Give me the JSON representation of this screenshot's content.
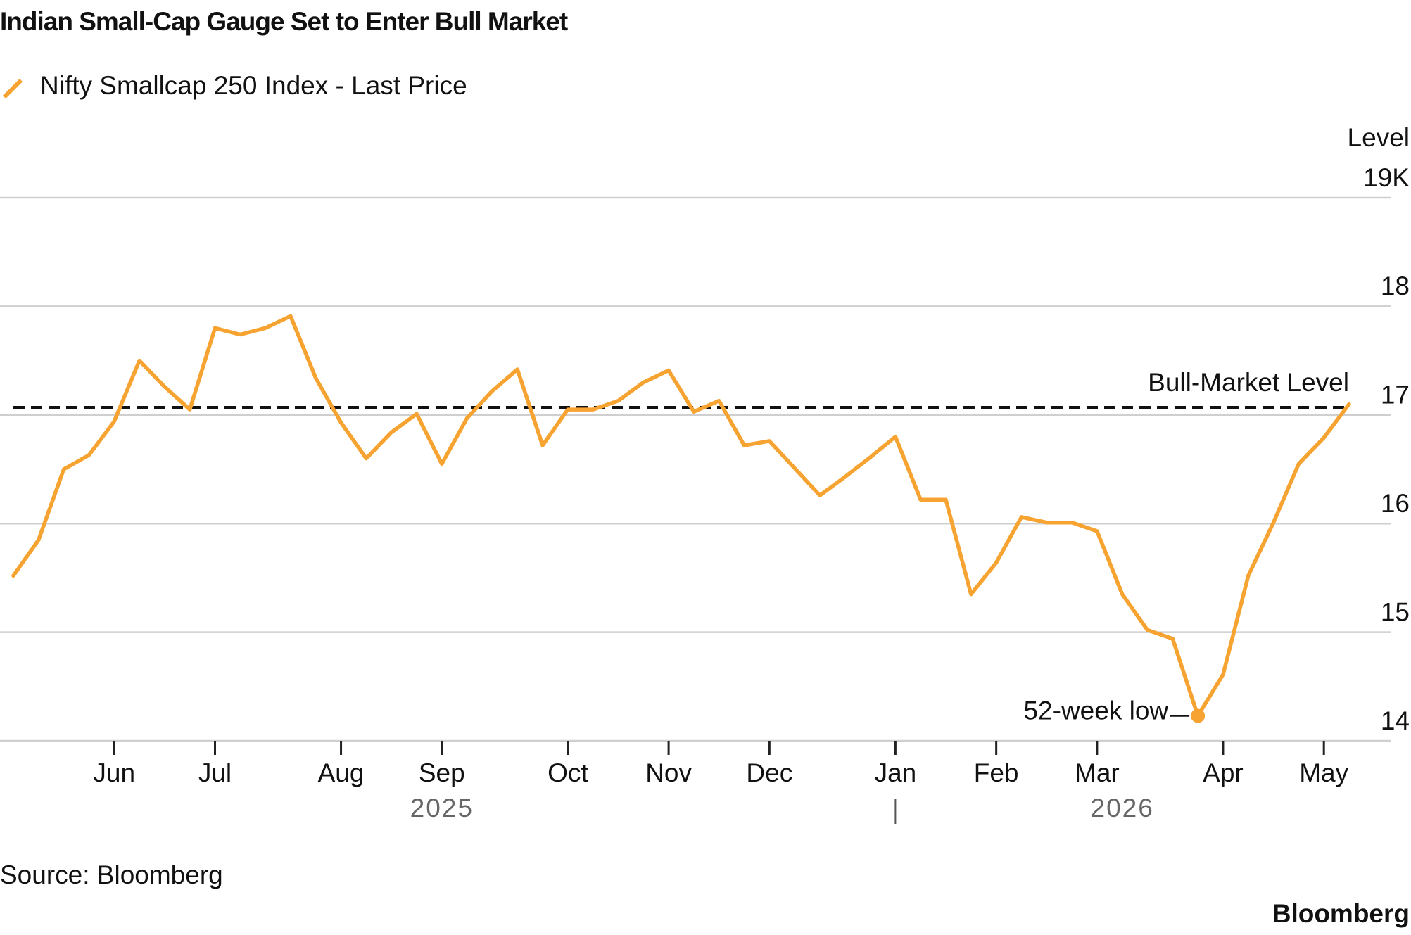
{
  "chart_data": {
    "type": "line",
    "title": "Indian Small-Cap Gauge Set to Enter Bull Market",
    "y_axis_label": "Level",
    "categories": [
      null,
      null,
      null,
      null,
      "Jun",
      null,
      null,
      null,
      "Jul",
      null,
      null,
      null,
      null,
      "Aug",
      null,
      null,
      null,
      "Sep",
      null,
      null,
      null,
      null,
      "Oct",
      null,
      null,
      null,
      "Nov",
      null,
      null,
      null,
      "Dec",
      null,
      null,
      null,
      null,
      "Jan",
      null,
      null,
      null,
      "Feb",
      null,
      null,
      null,
      "Mar",
      null,
      null,
      null,
      null,
      "Apr",
      null,
      null,
      null,
      "May",
      null
    ],
    "x_group_labels": [
      "2025",
      "2026"
    ],
    "series": [
      {
        "name": "Nifty Smallcap 250 Index - Last Price",
        "color": "#f6a331",
        "values": [
          15.52,
          15.85,
          16.5,
          16.63,
          16.94,
          17.5,
          17.26,
          17.05,
          17.8,
          17.74,
          17.8,
          17.91,
          17.34,
          16.93,
          16.6,
          16.84,
          17.01,
          16.55,
          16.97,
          17.22,
          17.42,
          16.72,
          17.05,
          17.05,
          17.13,
          17.3,
          17.41,
          17.03,
          17.13,
          16.72,
          16.76,
          16.51,
          16.26,
          16.43,
          16.61,
          16.8,
          16.22,
          16.22,
          15.35,
          15.64,
          16.06,
          16.01,
          16.01,
          15.93,
          15.35,
          15.02,
          14.94,
          14.23,
          14.61,
          15.52,
          16.01,
          16.55,
          16.79,
          17.1
        ]
      }
    ],
    "ylim": [
      14,
      19
    ],
    "yticks": [
      14,
      15,
      16,
      17,
      18,
      {
        "value": 19,
        "label": "19K"
      }
    ],
    "grid": true,
    "reference_line": {
      "value": 17.07,
      "label": "Bull-Market Level"
    },
    "low_label": "52-week low",
    "source": "Source: Bloomberg",
    "brand": "Bloomberg"
  }
}
